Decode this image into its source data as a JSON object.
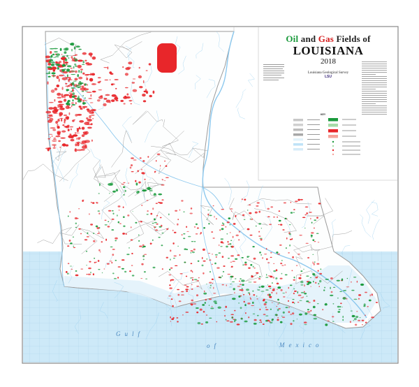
{
  "title": {
    "word_oil": "Oil",
    "word_and": " and ",
    "word_gas": "Gas",
    "word_rest": " Fields of",
    "state": "LOUISIANA",
    "year": "2018"
  },
  "credits": {
    "agency": "Louisiana Geological Survey",
    "logo_text": "LSU"
  },
  "legend": {
    "heading": "KEY",
    "symbol_colors": [
      "#c8c8c8",
      "#d0d0d0",
      "#bdbdbd",
      "#a8a8a8",
      "#e3f3fb",
      "#bfe3f7",
      "#d7ecf8"
    ],
    "field_colors": [
      "#1a9a3c",
      "#a6dca8",
      "#e8262a",
      "#f6a39a"
    ]
  },
  "water_labels": {
    "gulf": "Gulf",
    "of": "of",
    "mexico": "Mexico"
  },
  "colors": {
    "oil_field": "#1a9a3c",
    "gas_field": "#e8262a",
    "water": "#cde9f8",
    "rivers": "#8cc8ee",
    "boundaries": "#9a9a9a"
  }
}
